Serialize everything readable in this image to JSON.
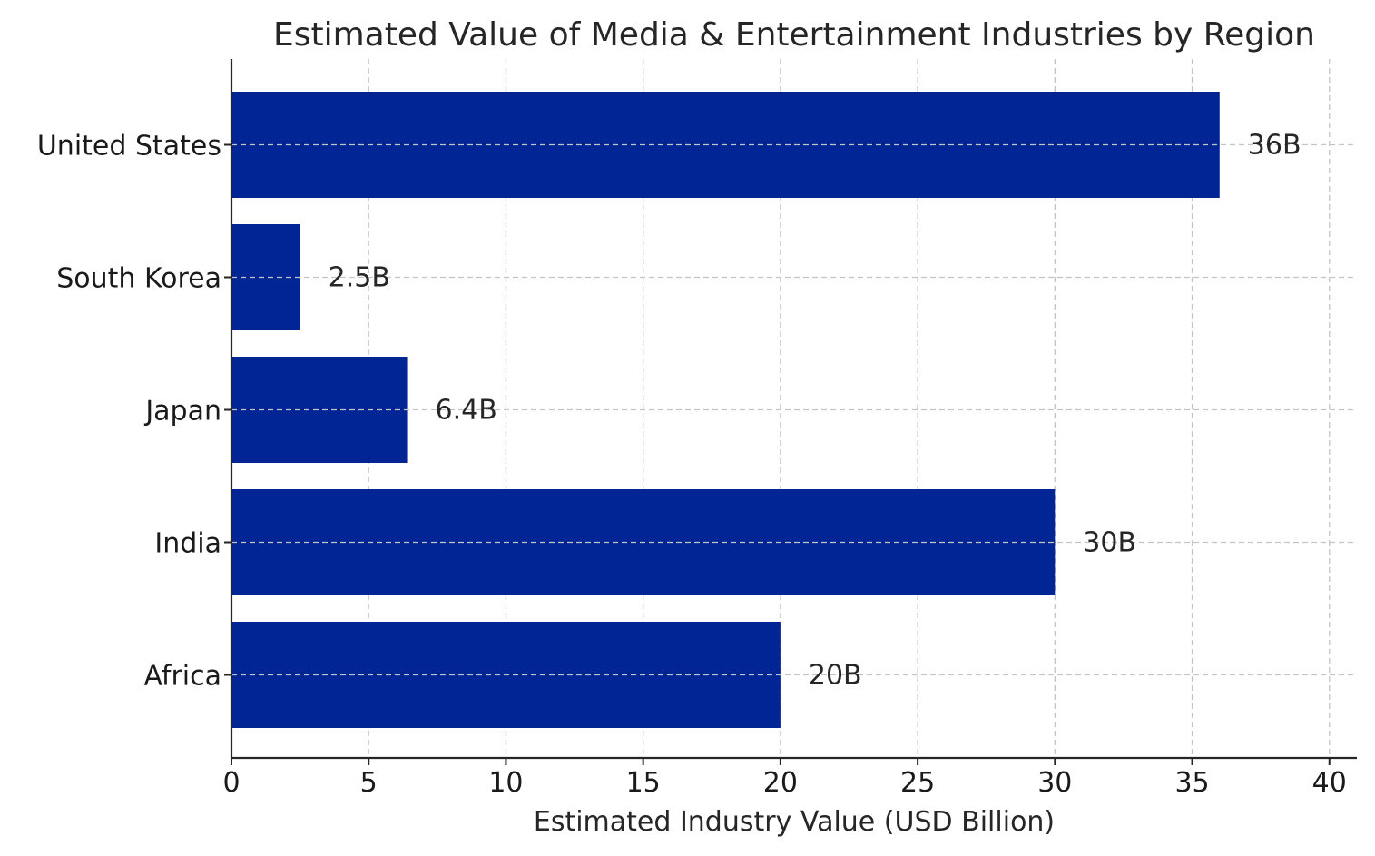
{
  "chart_data": {
    "type": "bar",
    "orientation": "horizontal",
    "title": "Estimated Value of Media & Entertainment Industries by Region",
    "xlabel": "Estimated Industry Value (USD Billion)",
    "ylabel": "",
    "categories": [
      "United States",
      "South Korea",
      "Japan",
      "India",
      "Africa"
    ],
    "values": [
      36,
      2.5,
      6.4,
      30,
      20
    ],
    "data_labels": [
      "36B",
      "2.5B",
      "6.4B",
      "30B",
      "20B"
    ],
    "xlim": [
      0,
      41
    ],
    "xticks": [
      0,
      5,
      10,
      15,
      20,
      25,
      30,
      35,
      40
    ],
    "grid": true,
    "bar_color": "#022595"
  }
}
